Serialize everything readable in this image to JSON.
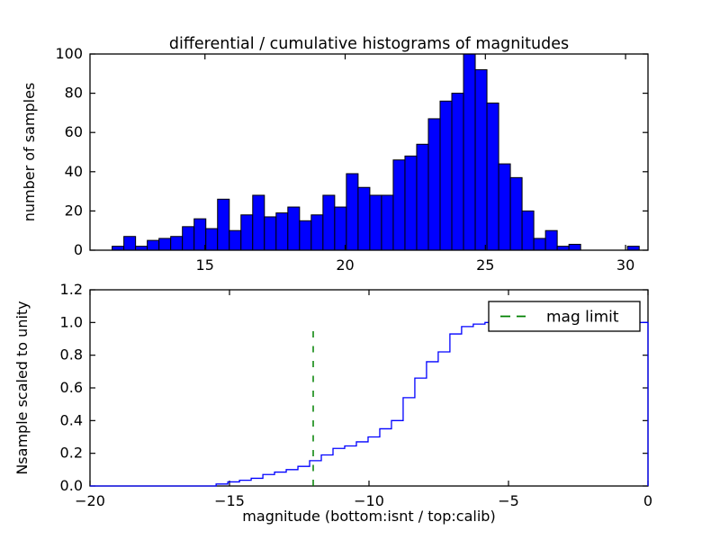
{
  "figure": {
    "background": "#ffffff",
    "title": "differential / cumulative histograms of magnitudes"
  },
  "chart_data": [
    {
      "type": "bar",
      "position": "top",
      "title": "differential / cumulative histograms of magnitudes",
      "ylabel": "number of samples",
      "xlim": [
        10.9,
        30.8
      ],
      "ylim": [
        0,
        100
      ],
      "xticks": [
        15,
        20,
        25,
        30
      ],
      "xtick_labels": [
        "15",
        "20",
        "25",
        "30"
      ],
      "yticks": [
        0,
        20,
        40,
        60,
        80,
        100
      ],
      "ytick_labels": [
        "0",
        "20",
        "40",
        "60",
        "80",
        "100"
      ],
      "grid": false,
      "bar_fill": "#0000ff",
      "bar_edge": "#000000",
      "bin_start": 11.69,
      "bin_width": 0.4177,
      "counts": [
        2,
        7,
        2,
        5,
        6,
        7,
        12,
        16,
        11,
        26,
        10,
        18,
        28,
        17,
        19,
        22,
        15,
        18,
        28,
        22,
        39,
        32,
        28,
        28,
        46,
        48,
        54,
        67,
        76,
        80,
        100,
        92,
        75,
        44,
        37,
        20,
        6,
        10,
        2,
        3,
        0,
        0,
        0,
        0,
        2
      ]
    },
    {
      "type": "step-line",
      "position": "bottom",
      "ylabel": "Nsample scaled to unity",
      "xlabel": "magnitude (bottom:isnt / top:calib)",
      "xlim": [
        -20,
        0
      ],
      "ylim": [
        0,
        1.2
      ],
      "xticks": [
        -20,
        -15,
        -10,
        -5,
        0
      ],
      "xtick_labels": [
        "−20",
        "−15",
        "−10",
        "−5",
        "0"
      ],
      "yticks": [
        0,
        0.2,
        0.4,
        0.6,
        0.8,
        1.0,
        1.2
      ],
      "ytick_labels": [
        "0.0",
        "0.2",
        "0.4",
        "0.6",
        "0.8",
        "1.0",
        "1.2"
      ],
      "grid": false,
      "line_color": "#0000ff",
      "step_start_x": -15.48,
      "step_bin_width": 0.419,
      "step_values": [
        0.012,
        0.025,
        0.035,
        0.047,
        0.07,
        0.085,
        0.1,
        0.12,
        0.155,
        0.19,
        0.23,
        0.245,
        0.27,
        0.3,
        0.35,
        0.4,
        0.54,
        0.66,
        0.76,
        0.82,
        0.93,
        0.975,
        0.99,
        1.0
      ],
      "flat_end_value": 1.0,
      "right_edge_drop": true,
      "vline": {
        "x": -12,
        "y_bottom": 0,
        "y_top": 0.96,
        "color": "#008000",
        "style": "dashed"
      },
      "legend": {
        "label": "mag limit",
        "line_color": "#008000",
        "position": "upper right"
      }
    }
  ]
}
